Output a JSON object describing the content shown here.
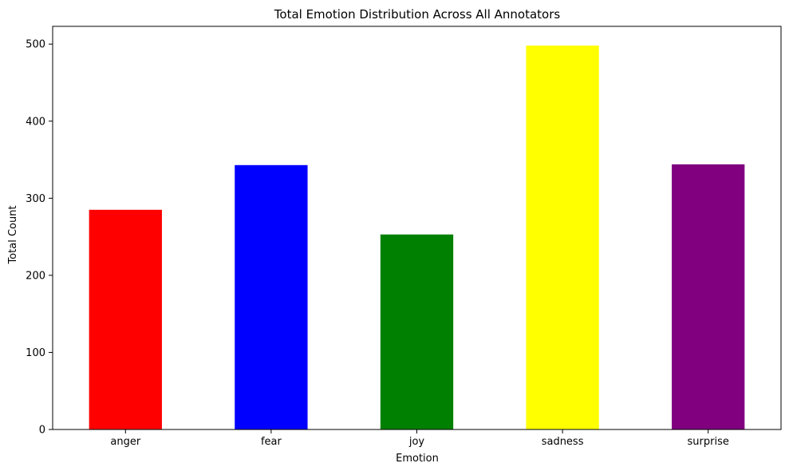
{
  "chart_data": {
    "type": "bar",
    "title": "Total Emotion Distribution Across All Annotators",
    "xlabel": "Emotion",
    "ylabel": "Total Count",
    "categories": [
      "anger",
      "fear",
      "joy",
      "sadness",
      "surprise"
    ],
    "values": [
      285,
      343,
      253,
      498,
      344
    ],
    "colors": [
      "#ff0000",
      "#0000ff",
      "#008000",
      "#ffff00",
      "#800080"
    ],
    "ylim": [
      0,
      523
    ],
    "yticks": [
      0,
      100,
      200,
      300,
      400,
      500
    ],
    "grid": false,
    "legend": false
  }
}
